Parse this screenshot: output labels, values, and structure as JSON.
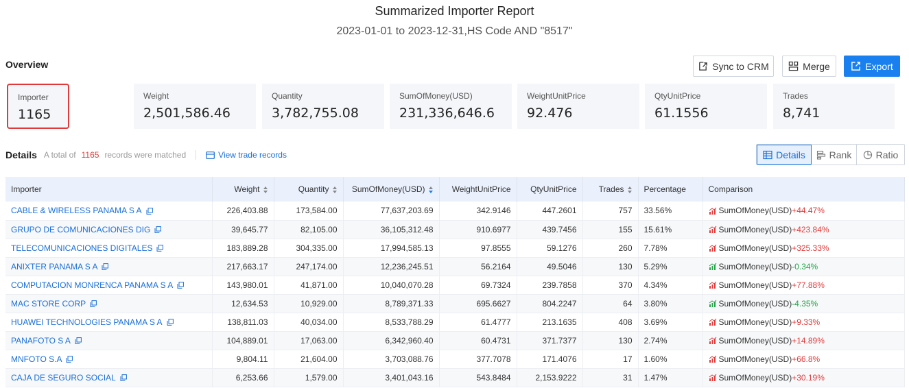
{
  "report": {
    "title": "Summarized Importer Report",
    "subtitle": "2023-01-01 to 2023-12-31,HS Code AND \"8517\""
  },
  "overview": {
    "label": "Overview",
    "buttons": {
      "sync": "Sync to CRM",
      "merge": "Merge",
      "export": "Export"
    },
    "cards": [
      {
        "label": "Importer",
        "value": "1165"
      },
      {
        "label": "Weight",
        "value": "2,501,586.46"
      },
      {
        "label": "Quantity",
        "value": "3,782,755.08"
      },
      {
        "label": "SumOfMoney(USD)",
        "value": "231,336,646.6"
      },
      {
        "label": "WeightUnitPrice",
        "value": "92.476"
      },
      {
        "label": "QtyUnitPrice",
        "value": "61.1556"
      },
      {
        "label": "Trades",
        "value": "8,741"
      }
    ]
  },
  "details": {
    "title": "Details",
    "prefix": "A total of",
    "count": "1165",
    "suffix": "records were matched",
    "view_link": "View trade records",
    "tabs": {
      "details": "Details",
      "rank": "Rank",
      "ratio": "Ratio"
    }
  },
  "table": {
    "headers": [
      "Importer",
      "Weight",
      "Quantity",
      "SumOfMoney(USD)",
      "WeightUnitPrice",
      "QtyUnitPrice",
      "Trades",
      "Percentage",
      "Comparison"
    ],
    "rows": [
      {
        "importer": "CABLE & WIRELESS PANAMA S A",
        "weight": "226,403.88",
        "quantity": "173,584.00",
        "money": "77,637,203.69",
        "wup": "342.9146",
        "qup": "447.2601",
        "trades": "757",
        "pct": "33.56%",
        "cmp_label": "SumOfMoney(USD)",
        "cmp_value": "+44.47%",
        "trend": "up"
      },
      {
        "importer": "GRUPO DE COMUNICACIONES DIG",
        "weight": "39,645.77",
        "quantity": "82,105.00",
        "money": "36,105,312.48",
        "wup": "910.6977",
        "qup": "439.7456",
        "trades": "155",
        "pct": "15.61%",
        "cmp_label": "SumOfMoney(USD)",
        "cmp_value": "+423.84%",
        "trend": "up"
      },
      {
        "importer": "TELECOMUNICACIONES DIGITALES",
        "weight": "183,889.28",
        "quantity": "304,335.00",
        "money": "17,994,585.13",
        "wup": "97.8555",
        "qup": "59.1276",
        "trades": "260",
        "pct": "7.78%",
        "cmp_label": "SumOfMoney(USD)",
        "cmp_value": "+325.33%",
        "trend": "up"
      },
      {
        "importer": "ANIXTER PANAMA S A",
        "weight": "217,663.17",
        "quantity": "247,174.00",
        "money": "12,236,245.51",
        "wup": "56.2164",
        "qup": "49.5046",
        "trades": "130",
        "pct": "5.29%",
        "cmp_label": "SumOfMoney(USD)",
        "cmp_value": "-0.34%",
        "trend": "down"
      },
      {
        "importer": "COMPUTACION MONRENCA PANAMA S A",
        "weight": "143,980.01",
        "quantity": "41,871.00",
        "money": "10,040,070.28",
        "wup": "69.7324",
        "qup": "239.7858",
        "trades": "370",
        "pct": "4.34%",
        "cmp_label": "SumOfMoney(USD)",
        "cmp_value": "+77.88%",
        "trend": "up"
      },
      {
        "importer": "MAC STORE CORP",
        "weight": "12,634.53",
        "quantity": "10,929.00",
        "money": "8,789,371.33",
        "wup": "695.6627",
        "qup": "804.2247",
        "trades": "64",
        "pct": "3.80%",
        "cmp_label": "SumOfMoney(USD)",
        "cmp_value": "-4.35%",
        "trend": "down"
      },
      {
        "importer": "HUAWEI TECHNOLOGIES PANAMA S A",
        "weight": "138,811.03",
        "quantity": "40,034.00",
        "money": "8,533,788.29",
        "wup": "61.4777",
        "qup": "213.1635",
        "trades": "408",
        "pct": "3.69%",
        "cmp_label": "SumOfMoney(USD)",
        "cmp_value": "+9.33%",
        "trend": "up"
      },
      {
        "importer": "PANAFOTO S A",
        "weight": "104,889.01",
        "quantity": "17,063.00",
        "money": "6,342,960.40",
        "wup": "60.4731",
        "qup": "371.7377",
        "trades": "130",
        "pct": "2.74%",
        "cmp_label": "SumOfMoney(USD)",
        "cmp_value": "+14.89%",
        "trend": "up"
      },
      {
        "importer": "MNFOTO S.A",
        "weight": "9,804.11",
        "quantity": "21,604.00",
        "money": "3,703,088.76",
        "wup": "377.7078",
        "qup": "171.4076",
        "trades": "17",
        "pct": "1.60%",
        "cmp_label": "SumOfMoney(USD)",
        "cmp_value": "+66.8%",
        "trend": "up"
      },
      {
        "importer": "CAJA DE SEGURO SOCIAL",
        "weight": "6,253.66",
        "quantity": "1,579.00",
        "money": "3,401,043.16",
        "wup": "543.8484",
        "qup": "2,153.9222",
        "trades": "31",
        "pct": "1.47%",
        "cmp_label": "SumOfMoney(USD)",
        "cmp_value": "+30.19%",
        "trend": "up"
      }
    ]
  },
  "colors": {
    "accent": "#1a80f0",
    "up": "#e23a3a",
    "down": "#27a34a",
    "highlight": "#e23a3a"
  }
}
